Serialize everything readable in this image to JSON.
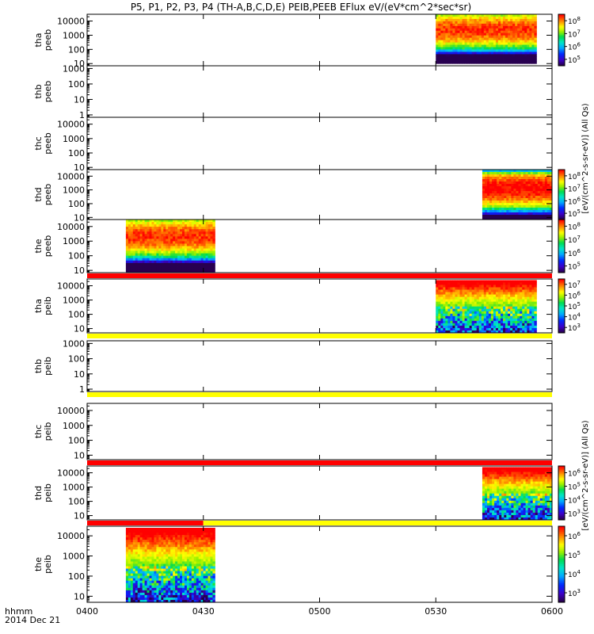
{
  "title": "P5, P1, P2, P3, P4 (TH-A,B,C,D,E) PEIB,PEEB EFlux eV/(eV*cm^2*sec*sr)",
  "footer": {
    "time_label": "hhmm",
    "date_label": "2014 Dec 21"
  },
  "x_axis": {
    "start": "0400",
    "end": "0600",
    "ticks": [
      {
        "minute": 0,
        "label": "0400"
      },
      {
        "minute": 30,
        "label": "0430"
      },
      {
        "minute": 60,
        "label": "0500"
      },
      {
        "minute": 90,
        "label": "0530"
      },
      {
        "minute": 120,
        "label": "0600"
      }
    ]
  },
  "colorbar_unit_labels": {
    "peeb": "[eV/(cm^2-s-sr-eV)] (All Qs)",
    "peib": "[eV/(cm^2-s-sr-eV)] (All Qs)"
  },
  "chart_data": [
    {
      "type": "heatmap",
      "ylabel": [
        "tha",
        "peeb"
      ],
      "yscale": "log",
      "ylim": [
        7,
        30000
      ],
      "yticks": [
        10,
        100,
        1000,
        10000
      ],
      "ytick_labels": [
        "10",
        "100",
        "1000",
        "10000"
      ],
      "data_intervals": [
        [
          90,
          116
        ]
      ],
      "energy_range": [
        10,
        30000
      ],
      "color_scale": "peeb",
      "colorbar": {
        "show": true,
        "ticks": [
          "10^5",
          "10^6",
          "10^7",
          "10^8"
        ]
      },
      "bar_below": null
    },
    {
      "type": "heatmap",
      "ylabel": [
        "thb",
        "peeb"
      ],
      "yscale": "log",
      "ylim": [
        0.7,
        1500
      ],
      "yticks": [
        1,
        10,
        100,
        1000
      ],
      "ytick_labels": [
        "1",
        "10",
        "100",
        "1000"
      ],
      "data_intervals": [],
      "color_scale": "peeb",
      "colorbar": {
        "show": false
      },
      "bar_below": null
    },
    {
      "type": "heatmap",
      "ylabel": [
        "thc",
        "peeb"
      ],
      "yscale": "log",
      "ylim": [
        7,
        30000
      ],
      "yticks": [
        10,
        100,
        1000,
        10000
      ],
      "ytick_labels": [
        "10",
        "100",
        "1000",
        "10000"
      ],
      "data_intervals": [],
      "color_scale": "peeb",
      "colorbar": {
        "show": false
      },
      "bar_below": null
    },
    {
      "type": "heatmap",
      "ylabel": [
        "thd",
        "peeb"
      ],
      "yscale": "log",
      "ylim": [
        7,
        30000
      ],
      "yticks": [
        10,
        100,
        1000,
        10000
      ],
      "ytick_labels": [
        "10",
        "100",
        "1000",
        "10000"
      ],
      "data_intervals": [
        [
          102,
          120
        ]
      ],
      "energy_range": [
        7,
        30000
      ],
      "color_scale": "peeb_d",
      "colorbar": {
        "show": true,
        "ticks": [
          "10^5",
          "10^6",
          "10^7",
          "10^8"
        ]
      },
      "bar_below": null
    },
    {
      "type": "heatmap",
      "ylabel": [
        "the",
        "peeb"
      ],
      "yscale": "log",
      "ylim": [
        7,
        30000
      ],
      "yticks": [
        10,
        100,
        1000,
        10000
      ],
      "ytick_labels": [
        "10",
        "100",
        "1000",
        "10000"
      ],
      "data_intervals": [
        [
          10,
          33
        ]
      ],
      "energy_range": [
        7,
        30000
      ],
      "color_scale": "peeb",
      "colorbar": {
        "show": true,
        "ticks": [
          "10^5",
          "10^6",
          "10^7",
          "10^8"
        ]
      },
      "bar_below": [
        {
          "from": 0,
          "to": 120,
          "color": "#ff0000"
        }
      ]
    },
    {
      "type": "heatmap",
      "ylabel": [
        "tha",
        "peib"
      ],
      "yscale": "log",
      "ylim": [
        5,
        30000
      ],
      "yticks": [
        10,
        100,
        1000,
        10000
      ],
      "ytick_labels": [
        "10",
        "100",
        "1000",
        "10000"
      ],
      "data_intervals": [
        [
          90,
          116
        ]
      ],
      "energy_range": [
        5,
        25000
      ],
      "color_scale": "peib",
      "colorbar": {
        "show": true,
        "ticks": [
          "10^3",
          "10^4",
          "10^5",
          "10^6",
          "10^7"
        ]
      },
      "bar_below": [
        {
          "from": 0,
          "to": 120,
          "color": "#ffff00"
        }
      ]
    },
    {
      "type": "heatmap",
      "ylabel": [
        "thb",
        "peib"
      ],
      "yscale": "log",
      "ylim": [
        0.7,
        1500
      ],
      "yticks": [
        1,
        10,
        100,
        1000
      ],
      "ytick_labels": [
        "1",
        "10",
        "100",
        "1000"
      ],
      "data_intervals": [],
      "color_scale": "peib",
      "colorbar": {
        "show": false
      },
      "bar_below": [
        {
          "from": 0,
          "to": 120,
          "color": "#ffff00"
        }
      ]
    },
    {
      "type": "heatmap",
      "ylabel": [
        "thc",
        "peib"
      ],
      "yscale": "log",
      "ylim": [
        5,
        30000
      ],
      "yticks": [
        10,
        100,
        1000,
        10000
      ],
      "ytick_labels": [
        "10",
        "100",
        "1000",
        "10000"
      ],
      "data_intervals": [],
      "color_scale": "peib",
      "colorbar": {
        "show": false
      },
      "bar_below": [
        {
          "from": 0,
          "to": 120,
          "color": "#ff0000"
        }
      ]
    },
    {
      "type": "heatmap",
      "ylabel": [
        "thd",
        "peib"
      ],
      "yscale": "log",
      "ylim": [
        5,
        30000
      ],
      "yticks": [
        10,
        100,
        1000,
        10000
      ],
      "ytick_labels": [
        "10",
        "100",
        "1000",
        "10000"
      ],
      "data_intervals": [
        [
          102,
          120
        ]
      ],
      "energy_range": [
        5,
        25000
      ],
      "color_scale": "peib",
      "colorbar": {
        "show": true,
        "ticks": [
          "10^3",
          "10^4",
          "10^5",
          "10^6"
        ]
      },
      "bar_below": [
        {
          "from": 0,
          "to": 30,
          "color": "#ff0000"
        },
        {
          "from": 30,
          "to": 120,
          "color": "#ffff00"
        }
      ]
    },
    {
      "type": "heatmap",
      "ylabel": [
        "the",
        "peib"
      ],
      "yscale": "log",
      "ylim": [
        5,
        30000
      ],
      "yticks": [
        10,
        100,
        1000,
        10000
      ],
      "ytick_labels": [
        "10",
        "100",
        "1000",
        "10000"
      ],
      "data_intervals": [
        [
          10,
          33
        ]
      ],
      "energy_range": [
        5,
        25000
      ],
      "color_scale": "peib",
      "colorbar": {
        "show": true,
        "ticks": [
          "10^3",
          "10^4",
          "10^5",
          "10^6"
        ]
      },
      "bar_below": null
    }
  ]
}
